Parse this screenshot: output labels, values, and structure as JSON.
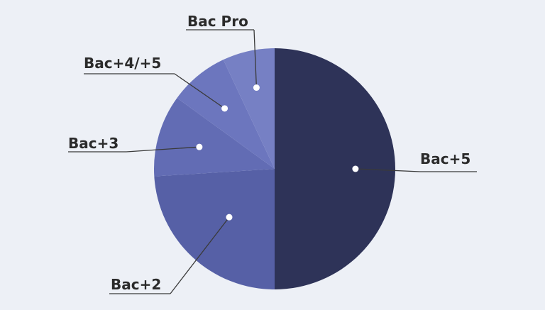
{
  "chart_data": {
    "type": "pie",
    "title": "",
    "slices": [
      {
        "label": "Bac+5",
        "value": 50,
        "color": "#2e3358"
      },
      {
        "label": "Bac+2",
        "value": 24,
        "color": "#5660a6"
      },
      {
        "label": "Bac+3",
        "value": 11,
        "color": "#626cb4"
      },
      {
        "label": "Bac+4/+5",
        "value": 8,
        "color": "#6c76be"
      },
      {
        "label": "Bac Pro",
        "value": 7,
        "color": "#7680c4"
      }
    ],
    "legend": "none",
    "label_style": "leader-lines"
  }
}
